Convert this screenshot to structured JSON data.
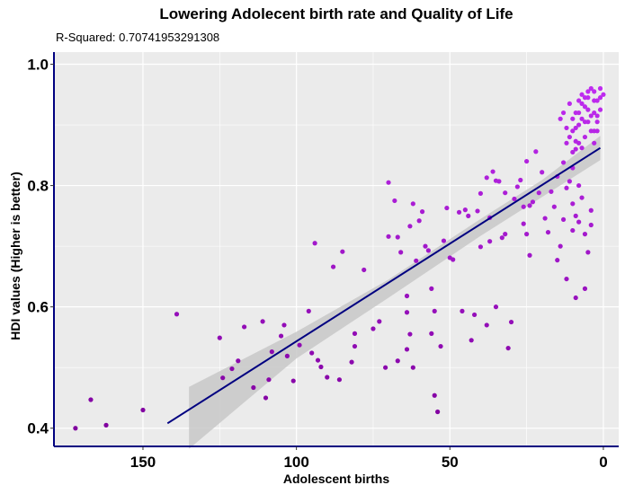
{
  "chart_data": {
    "type": "scatter",
    "title": "Lowering Adolecent birth rate and Quality of Life",
    "subtitle": "R-Squared:  0.70741953291308",
    "xlabel": "Adolescent births",
    "ylabel": "HDI values (Higher is better)",
    "x_reversed": true,
    "xlim": [
      179,
      -5
    ],
    "ylim": [
      0.37,
      1.02
    ],
    "x_ticks": [
      150,
      100,
      50,
      0
    ],
    "y_ticks": [
      0.4,
      0.6,
      0.8,
      1.0
    ],
    "x_tick_labels": [
      "150",
      "100",
      "50",
      "0"
    ],
    "y_tick_labels": [
      "0.4",
      "0.6",
      "0.8",
      "1.0"
    ],
    "grid": true,
    "trend_line": {
      "x": [
        142,
        1
      ],
      "y": [
        0.408,
        0.862
      ]
    },
    "confidence_band": {
      "x": [
        135,
        100,
        70,
        40,
        20,
        1
      ],
      "upper": [
        0.468,
        0.559,
        0.645,
        0.745,
        0.809,
        0.882
      ],
      "lower": [
        0.366,
        0.515,
        0.615,
        0.717,
        0.781,
        0.842
      ]
    },
    "colors": {
      "panel": "#EBEBEB",
      "grid": "#FFFFFF",
      "axis": "#000080",
      "line": "#000080",
      "band": "#C8C8C8"
    },
    "points": [
      {
        "x": 172,
        "y": 0.4
      },
      {
        "x": 167,
        "y": 0.447
      },
      {
        "x": 162,
        "y": 0.405
      },
      {
        "x": 150,
        "y": 0.43
      },
      {
        "x": 139,
        "y": 0.588
      },
      {
        "x": 125,
        "y": 0.549
      },
      {
        "x": 124,
        "y": 0.483
      },
      {
        "x": 121,
        "y": 0.498
      },
      {
        "x": 119,
        "y": 0.511
      },
      {
        "x": 117,
        "y": 0.567
      },
      {
        "x": 114,
        "y": 0.467
      },
      {
        "x": 111,
        "y": 0.576
      },
      {
        "x": 110,
        "y": 0.45
      },
      {
        "x": 109,
        "y": 0.48
      },
      {
        "x": 108,
        "y": 0.526
      },
      {
        "x": 105,
        "y": 0.552
      },
      {
        "x": 104,
        "y": 0.57
      },
      {
        "x": 103,
        "y": 0.519
      },
      {
        "x": 101,
        "y": 0.478
      },
      {
        "x": 99,
        "y": 0.537
      },
      {
        "x": 96,
        "y": 0.593
      },
      {
        "x": 95,
        "y": 0.524
      },
      {
        "x": 94,
        "y": 0.705
      },
      {
        "x": 93,
        "y": 0.512
      },
      {
        "x": 92,
        "y": 0.501
      },
      {
        "x": 90,
        "y": 0.484
      },
      {
        "x": 88,
        "y": 0.666
      },
      {
        "x": 86,
        "y": 0.48
      },
      {
        "x": 85,
        "y": 0.691
      },
      {
        "x": 82,
        "y": 0.509
      },
      {
        "x": 81,
        "y": 0.556
      },
      {
        "x": 81,
        "y": 0.535
      },
      {
        "x": 78,
        "y": 0.661
      },
      {
        "x": 75,
        "y": 0.564
      },
      {
        "x": 73,
        "y": 0.576
      },
      {
        "x": 71,
        "y": 0.5
      },
      {
        "x": 70,
        "y": 0.805
      },
      {
        "x": 70,
        "y": 0.716
      },
      {
        "x": 68,
        "y": 0.775
      },
      {
        "x": 67,
        "y": 0.715
      },
      {
        "x": 67,
        "y": 0.511
      },
      {
        "x": 66,
        "y": 0.69
      },
      {
        "x": 64,
        "y": 0.591
      },
      {
        "x": 64,
        "y": 0.53
      },
      {
        "x": 64,
        "y": 0.618
      },
      {
        "x": 63,
        "y": 0.555
      },
      {
        "x": 63,
        "y": 0.733
      },
      {
        "x": 62,
        "y": 0.5
      },
      {
        "x": 62,
        "y": 0.77
      },
      {
        "x": 61,
        "y": 0.676
      },
      {
        "x": 60,
        "y": 0.742
      },
      {
        "x": 59,
        "y": 0.757
      },
      {
        "x": 58,
        "y": 0.7
      },
      {
        "x": 57,
        "y": 0.693
      },
      {
        "x": 56,
        "y": 0.63
      },
      {
        "x": 56,
        "y": 0.556
      },
      {
        "x": 55,
        "y": 0.454
      },
      {
        "x": 55,
        "y": 0.593
      },
      {
        "x": 54,
        "y": 0.427
      },
      {
        "x": 53,
        "y": 0.535
      },
      {
        "x": 52,
        "y": 0.709
      },
      {
        "x": 51,
        "y": 0.763
      },
      {
        "x": 50,
        "y": 0.681
      },
      {
        "x": 49,
        "y": 0.678
      },
      {
        "x": 47,
        "y": 0.756
      },
      {
        "x": 46,
        "y": 0.593
      },
      {
        "x": 45,
        "y": 0.76
      },
      {
        "x": 44,
        "y": 0.75
      },
      {
        "x": 43,
        "y": 0.545
      },
      {
        "x": 42,
        "y": 0.587
      },
      {
        "x": 41,
        "y": 0.758
      },
      {
        "x": 40,
        "y": 0.787
      },
      {
        "x": 40,
        "y": 0.699
      },
      {
        "x": 38,
        "y": 0.813
      },
      {
        "x": 38,
        "y": 0.57
      },
      {
        "x": 37,
        "y": 0.747
      },
      {
        "x": 37,
        "y": 0.708
      },
      {
        "x": 36,
        "y": 0.823
      },
      {
        "x": 35,
        "y": 0.808
      },
      {
        "x": 35,
        "y": 0.6
      },
      {
        "x": 34,
        "y": 0.807
      },
      {
        "x": 33,
        "y": 0.714
      },
      {
        "x": 32,
        "y": 0.72
      },
      {
        "x": 32,
        "y": 0.788
      },
      {
        "x": 31,
        "y": 0.532
      },
      {
        "x": 30,
        "y": 0.575
      },
      {
        "x": 29,
        "y": 0.778
      },
      {
        "x": 28,
        "y": 0.798
      },
      {
        "x": 27,
        "y": 0.809
      },
      {
        "x": 26,
        "y": 0.737
      },
      {
        "x": 26,
        "y": 0.765
      },
      {
        "x": 25,
        "y": 0.72
      },
      {
        "x": 25,
        "y": 0.84
      },
      {
        "x": 24,
        "y": 0.767
      },
      {
        "x": 24,
        "y": 0.685
      },
      {
        "x": 23,
        "y": 0.773
      },
      {
        "x": 22,
        "y": 0.856
      },
      {
        "x": 21,
        "y": 0.788
      },
      {
        "x": 20,
        "y": 0.822
      },
      {
        "x": 19,
        "y": 0.746
      },
      {
        "x": 18,
        "y": 0.723
      },
      {
        "x": 17,
        "y": 0.79
      },
      {
        "x": 16,
        "y": 0.765
      },
      {
        "x": 15,
        "y": 0.677
      },
      {
        "x": 15,
        "y": 0.815
      },
      {
        "x": 14,
        "y": 0.7
      },
      {
        "x": 13,
        "y": 0.838
      },
      {
        "x": 13,
        "y": 0.744
      },
      {
        "x": 12,
        "y": 0.646
      },
      {
        "x": 12,
        "y": 0.796
      },
      {
        "x": 11,
        "y": 0.807
      },
      {
        "x": 10,
        "y": 0.726
      },
      {
        "x": 10,
        "y": 0.77
      },
      {
        "x": 10,
        "y": 0.829
      },
      {
        "x": 9,
        "y": 0.615
      },
      {
        "x": 9,
        "y": 0.75
      },
      {
        "x": 9,
        "y": 0.873
      },
      {
        "x": 8,
        "y": 0.74
      },
      {
        "x": 8,
        "y": 0.8
      },
      {
        "x": 7,
        "y": 0.78
      },
      {
        "x": 6,
        "y": 0.72
      },
      {
        "x": 5,
        "y": 0.69
      },
      {
        "x": 6,
        "y": 0.63
      },
      {
        "x": 4,
        "y": 0.735
      },
      {
        "x": 4,
        "y": 0.759
      },
      {
        "x": 9,
        "y": 0.92
      },
      {
        "x": 8,
        "y": 0.9
      },
      {
        "x": 7,
        "y": 0.935
      },
      {
        "x": 6,
        "y": 0.88
      },
      {
        "x": 5,
        "y": 0.955
      },
      {
        "x": 4,
        "y": 0.915
      },
      {
        "x": 3,
        "y": 0.94
      },
      {
        "x": 2,
        "y": 0.905
      },
      {
        "x": 1,
        "y": 0.925
      },
      {
        "x": 0,
        "y": 0.95
      },
      {
        "x": 1,
        "y": 0.96
      },
      {
        "x": 2,
        "y": 0.89
      },
      {
        "x": 3,
        "y": 0.87
      },
      {
        "x": 5,
        "y": 0.945
      },
      {
        "x": 6,
        "y": 0.905
      },
      {
        "x": 7,
        "y": 0.862
      },
      {
        "x": 8,
        "y": 0.87
      },
      {
        "x": 9,
        "y": 0.86
      },
      {
        "x": 10,
        "y": 0.89
      },
      {
        "x": 11,
        "y": 0.935
      },
      {
        "x": 12,
        "y": 0.895
      },
      {
        "x": 3,
        "y": 0.92
      },
      {
        "x": 2,
        "y": 0.94
      },
      {
        "x": 4,
        "y": 0.89
      },
      {
        "x": 5,
        "y": 0.925
      },
      {
        "x": 6,
        "y": 0.93
      },
      {
        "x": 7,
        "y": 0.95
      },
      {
        "x": 8,
        "y": 0.92
      },
      {
        "x": 10,
        "y": 0.855
      },
      {
        "x": 11,
        "y": 0.88
      },
      {
        "x": 4,
        "y": 0.96
      },
      {
        "x": 1,
        "y": 0.945
      },
      {
        "x": 2,
        "y": 0.915
      },
      {
        "x": 3,
        "y": 0.955
      },
      {
        "x": 6,
        "y": 0.945
      },
      {
        "x": 7,
        "y": 0.91
      },
      {
        "x": 9,
        "y": 0.895
      },
      {
        "x": 12,
        "y": 0.87
      },
      {
        "x": 13,
        "y": 0.92
      },
      {
        "x": 14,
        "y": 0.91
      },
      {
        "x": 3,
        "y": 0.89
      },
      {
        "x": 5,
        "y": 0.905
      },
      {
        "x": 8,
        "y": 0.94
      },
      {
        "x": 10,
        "y": 0.91
      }
    ]
  }
}
